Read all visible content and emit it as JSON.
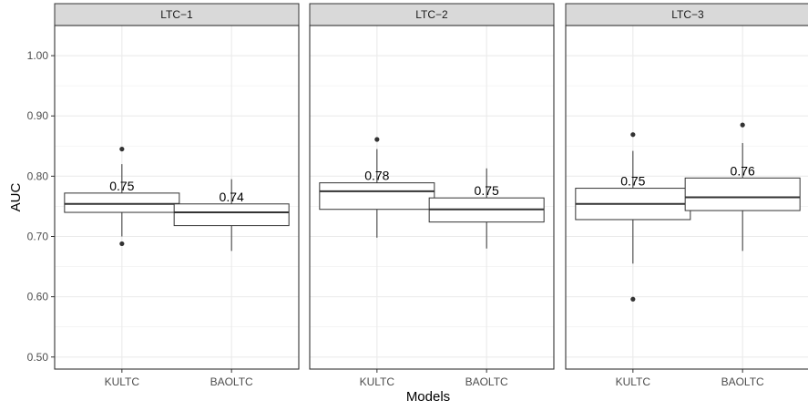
{
  "chart_data": {
    "type": "boxplot",
    "xlabel": "Models",
    "ylabel": "AUC",
    "ylim": [
      0.48,
      1.05
    ],
    "y_ticks": [
      "0.50",
      "0.60",
      "0.70",
      "0.80",
      "0.90",
      "1.00"
    ],
    "grid": true,
    "categories": [
      "KULTC",
      "BAOLTC"
    ],
    "panels": [
      {
        "title": "LTC−1",
        "boxes": [
          {
            "category": "KULTC",
            "whisker_low": 0.7,
            "q1": 0.74,
            "median": 0.754,
            "q3": 0.772,
            "whisker_high": 0.82,
            "outliers": [
              0.845,
              0.688
            ],
            "label": "0.75"
          },
          {
            "category": "BAOLTC",
            "whisker_low": 0.676,
            "q1": 0.718,
            "median": 0.74,
            "q3": 0.754,
            "whisker_high": 0.795,
            "outliers": [],
            "label": "0.74"
          }
        ]
      },
      {
        "title": "LTC−2",
        "boxes": [
          {
            "category": "KULTC",
            "whisker_low": 0.698,
            "q1": 0.745,
            "median": 0.775,
            "q3": 0.789,
            "whisker_high": 0.845,
            "outliers": [
              0.861
            ],
            "label": "0.78"
          },
          {
            "category": "BAOLTC",
            "whisker_low": 0.68,
            "q1": 0.724,
            "median": 0.745,
            "q3": 0.764,
            "whisker_high": 0.813,
            "outliers": [],
            "label": "0.75"
          }
        ]
      },
      {
        "title": "LTC−3",
        "boxes": [
          {
            "category": "KULTC",
            "whisker_low": 0.655,
            "q1": 0.728,
            "median": 0.754,
            "q3": 0.78,
            "whisker_high": 0.842,
            "outliers": [
              0.869,
              0.596
            ],
            "label": "0.75"
          },
          {
            "category": "BAOLTC",
            "whisker_low": 0.676,
            "q1": 0.743,
            "median": 0.765,
            "q3": 0.797,
            "whisker_high": 0.855,
            "outliers": [
              0.885
            ],
            "label": "0.76"
          }
        ]
      }
    ]
  }
}
